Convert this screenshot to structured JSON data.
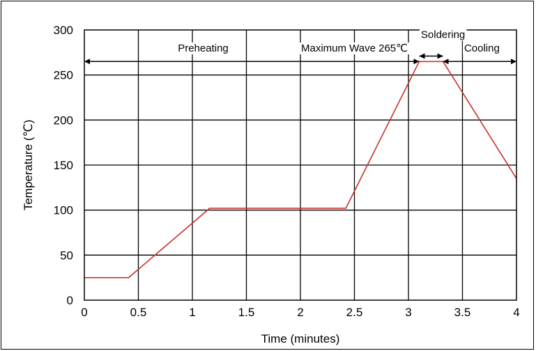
{
  "chart_data": {
    "type": "line",
    "xlabel": "Time (minutes)",
    "ylabel": "Temperature (℃)",
    "xlim": [
      0,
      4
    ],
    "ylim": [
      0,
      300
    ],
    "x_ticks": [
      "0",
      "0.5",
      "1",
      "1.5",
      "2",
      "2.5",
      "3",
      "3.5",
      "4"
    ],
    "y_ticks": [
      "0",
      "50",
      "100",
      "150",
      "200",
      "250",
      "300"
    ],
    "grid": true,
    "line_color": "#c8302c",
    "series": [
      {
        "x": [
          0,
          0.41,
          1.16,
          2.42,
          3.1,
          3.32,
          4.0
        ],
        "y": [
          25,
          25,
          102,
          102,
          265,
          265,
          135
        ]
      }
    ],
    "annotations": [
      {
        "text": "Preheating",
        "x": 1.1,
        "y": 276
      },
      {
        "text": "Maximum Wave 265℃",
        "x": 2.5,
        "y": 276
      },
      {
        "text": "Soldering",
        "x": 3.32,
        "y": 291
      },
      {
        "text": "Cooling",
        "x": 3.68,
        "y": 276
      }
    ],
    "arrows": [
      {
        "name": "preheating-arrow",
        "x1": 0,
        "x2": 3.1,
        "y": 265
      },
      {
        "name": "soldering-arrow",
        "x1": 3.1,
        "x2": 3.32,
        "y": 271
      },
      {
        "name": "cooling-arrow",
        "x1": 3.32,
        "x2": 4.0,
        "y": 265
      }
    ]
  }
}
